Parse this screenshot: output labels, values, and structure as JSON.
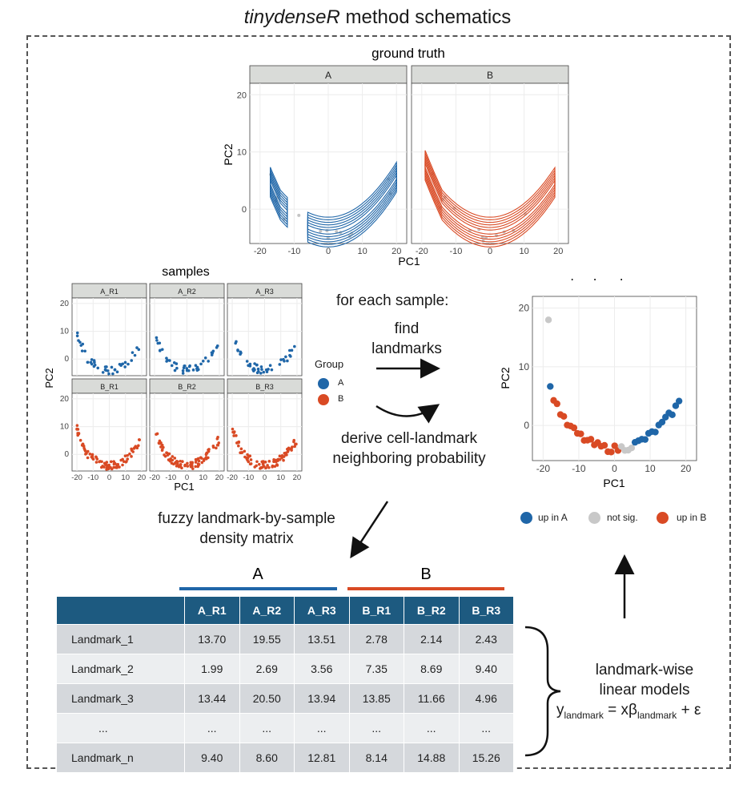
{
  "title": {
    "italic": "tinydenseR",
    "rest": " method schematics"
  },
  "ground_truth": {
    "title": "ground truth",
    "panels": [
      "A",
      "B"
    ],
    "xlabel": "PC1",
    "ylabel": "PC2",
    "xticks": [
      "-20",
      "-10",
      "0",
      "10",
      "20"
    ],
    "yticks": [
      "20",
      "10",
      "0"
    ],
    "colors": {
      "A": "#1f66a8",
      "B": "#d94a24"
    }
  },
  "samples": {
    "title": "samples",
    "panels": [
      "A_R1",
      "A_R2",
      "A_R3",
      "B_R1",
      "B_R2",
      "B_R3"
    ],
    "xlabel": "PC1",
    "ylabel": "PC2",
    "xticks": [
      "-20",
      "-10",
      "0",
      "10",
      "20"
    ],
    "yticks": [
      "20",
      "10",
      "0"
    ]
  },
  "legend": {
    "title": "Group",
    "items": [
      {
        "label": "A",
        "color": "#1f66a8"
      },
      {
        "label": "B",
        "color": "#d94a24"
      }
    ]
  },
  "process": {
    "for_each": "for each sample:",
    "find_1": "find",
    "find_2": "landmarks",
    "derive_1": "derive cell-landmark",
    "derive_2": "neighboring probability",
    "fuzzy_1": "fuzzy landmark-by-sample",
    "fuzzy_2": "density matrix"
  },
  "landmarks": {
    "title": "landmarks",
    "xlabel": "PC1",
    "ylabel": "PC2",
    "xticks": [
      "-20",
      "-10",
      "0",
      "10",
      "20"
    ],
    "yticks": [
      "20",
      "10",
      "0"
    ],
    "legend": [
      {
        "label": "up in A",
        "color": "#1f66a8"
      },
      {
        "label": "not sig.",
        "color": "#c8c8c8"
      },
      {
        "label": "up in B",
        "color": "#d94a24"
      }
    ]
  },
  "matrix": {
    "group_a": "A",
    "group_b": "B",
    "columns": [
      "A_R1",
      "A_R2",
      "A_R3",
      "B_R1",
      "B_R2",
      "B_R3"
    ],
    "rows": [
      {
        "label": "Landmark_1",
        "values": [
          "13.70",
          "19.55",
          "13.51",
          "2.78",
          "2.14",
          "2.43"
        ]
      },
      {
        "label": "Landmark_2",
        "values": [
          "1.99",
          "2.69",
          "3.56",
          "7.35",
          "8.69",
          "9.40"
        ]
      },
      {
        "label": "Landmark_3",
        "values": [
          "13.44",
          "20.50",
          "13.94",
          "13.85",
          "11.66",
          "4.96"
        ]
      },
      {
        "label": "...",
        "values": [
          "...",
          "...",
          "...",
          "...",
          "...",
          "..."
        ]
      },
      {
        "label": "Landmark_n",
        "values": [
          "9.40",
          "8.60",
          "12.81",
          "8.14",
          "14.88",
          "15.26"
        ]
      }
    ]
  },
  "models": {
    "line1": "landmark-wise",
    "line2": "linear models",
    "eq_y": "y",
    "eq_ysub": "landmark",
    "eq_mid": " = xβ",
    "eq_bsub": "landmark",
    "eq_end": " + ε"
  }
}
